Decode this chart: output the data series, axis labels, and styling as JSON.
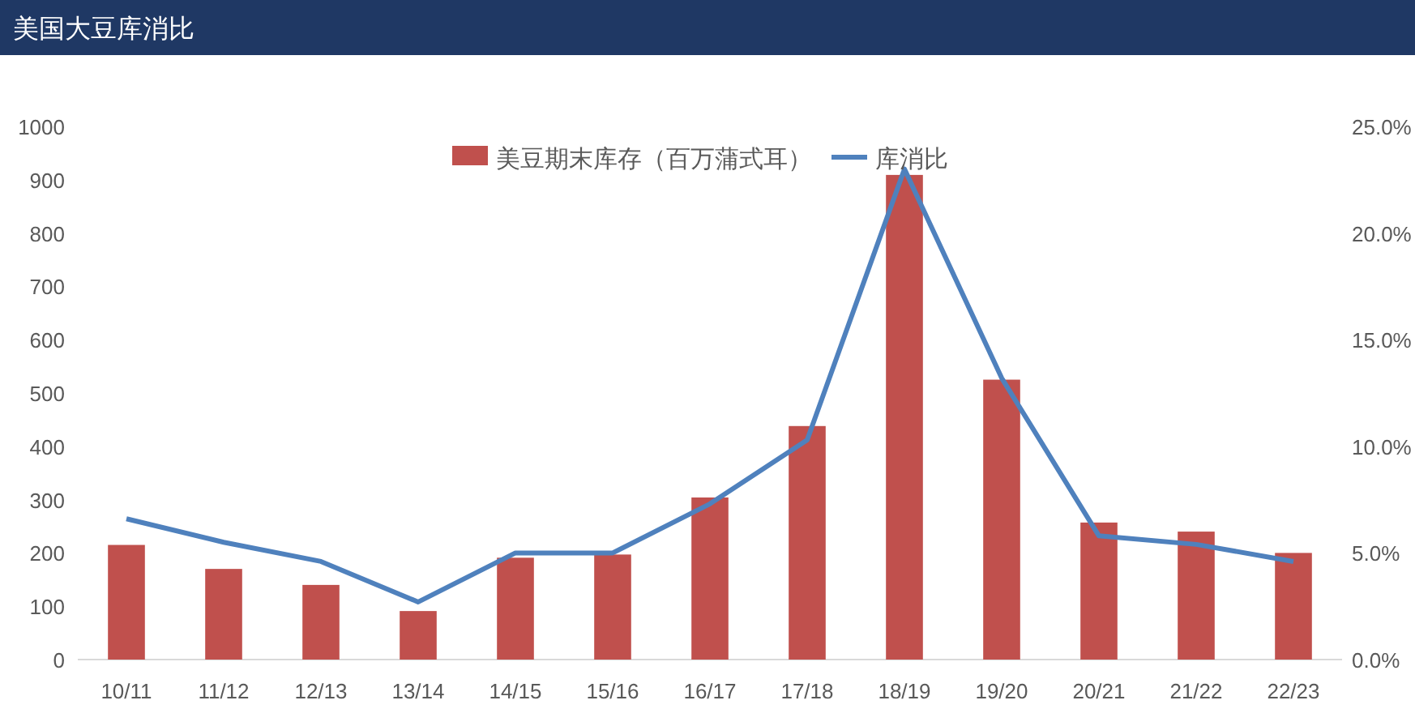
{
  "chart_data": {
    "type": "bar",
    "title": "美国大豆库消比",
    "categories": [
      "10/11",
      "11/12",
      "12/13",
      "13/14",
      "14/15",
      "15/16",
      "16/17",
      "17/18",
      "18/19",
      "19/20",
      "20/21",
      "21/22",
      "22/23"
    ],
    "series": [
      {
        "name": "美豆期末库存（百万蒲式耳）",
        "color": "#c0504d",
        "values": [
          215,
          170,
          140,
          91,
          191,
          197,
          304,
          438,
          909,
          525,
          257,
          240,
          200
        ]
      },
      {
        "name": "库消比",
        "type": "line",
        "axis": "y2",
        "color": "#4f81bd",
        "values": [
          6.6,
          5.5,
          4.6,
          2.7,
          5.0,
          5.0,
          7.3,
          10.3,
          23.0,
          13.2,
          5.8,
          5.4,
          4.6
        ]
      }
    ],
    "ylim": [
      0,
      1000
    ],
    "yticks": [
      0,
      100,
      200,
      300,
      400,
      500,
      600,
      700,
      800,
      900,
      1000
    ],
    "y2lim": [
      0,
      25
    ],
    "y2ticks": [
      {
        "value": 0,
        "label": "0.0%"
      },
      {
        "value": 5,
        "label": "5.0%"
      },
      {
        "value": 10,
        "label": "10.0%"
      },
      {
        "value": 15,
        "label": "15.0%"
      },
      {
        "value": 20,
        "label": "20.0%"
      },
      {
        "value": 25,
        "label": "25.0%"
      }
    ],
    "legend": "top",
    "grid": false,
    "marker": "none",
    "line_style": "solid"
  }
}
